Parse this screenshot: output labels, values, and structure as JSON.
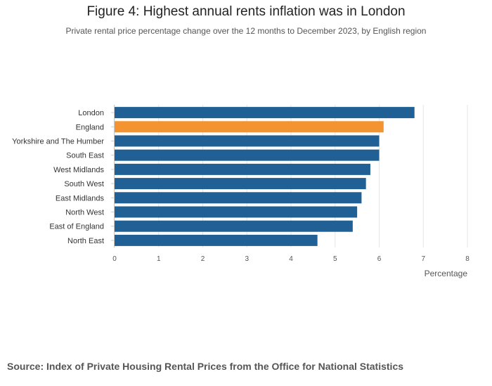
{
  "title": "Figure 4: Highest annual rents inflation was in London",
  "subtitle": "Private rental price percentage change over the 12 months to December 2023, by English region",
  "source": "Source: Index of Private Housing Rental Prices from the Office for National Statistics",
  "colors": {
    "default": "#206095",
    "highlight": "#f39431",
    "grid": "#e6e6e6"
  },
  "chart_data": {
    "type": "bar",
    "orientation": "horizontal",
    "title": "Figure 4: Highest annual rents inflation was in London",
    "subtitle": "Private rental price percentage change over the 12 months to December 2023, by English region",
    "xlabel": "Percentage",
    "ylabel": "",
    "xlim": [
      0,
      8
    ],
    "xticks": [
      0,
      1,
      2,
      3,
      4,
      5,
      6,
      7,
      8
    ],
    "grid": true,
    "categories": [
      "London",
      "England",
      "Yorkshire and The Humber",
      "South East",
      "West Midlands",
      "South West",
      "East Midlands",
      "North West",
      "East of England",
      "North East"
    ],
    "values": [
      6.8,
      6.1,
      6.0,
      6.0,
      5.8,
      5.7,
      5.6,
      5.5,
      5.4,
      4.6
    ],
    "highlight": "England"
  }
}
